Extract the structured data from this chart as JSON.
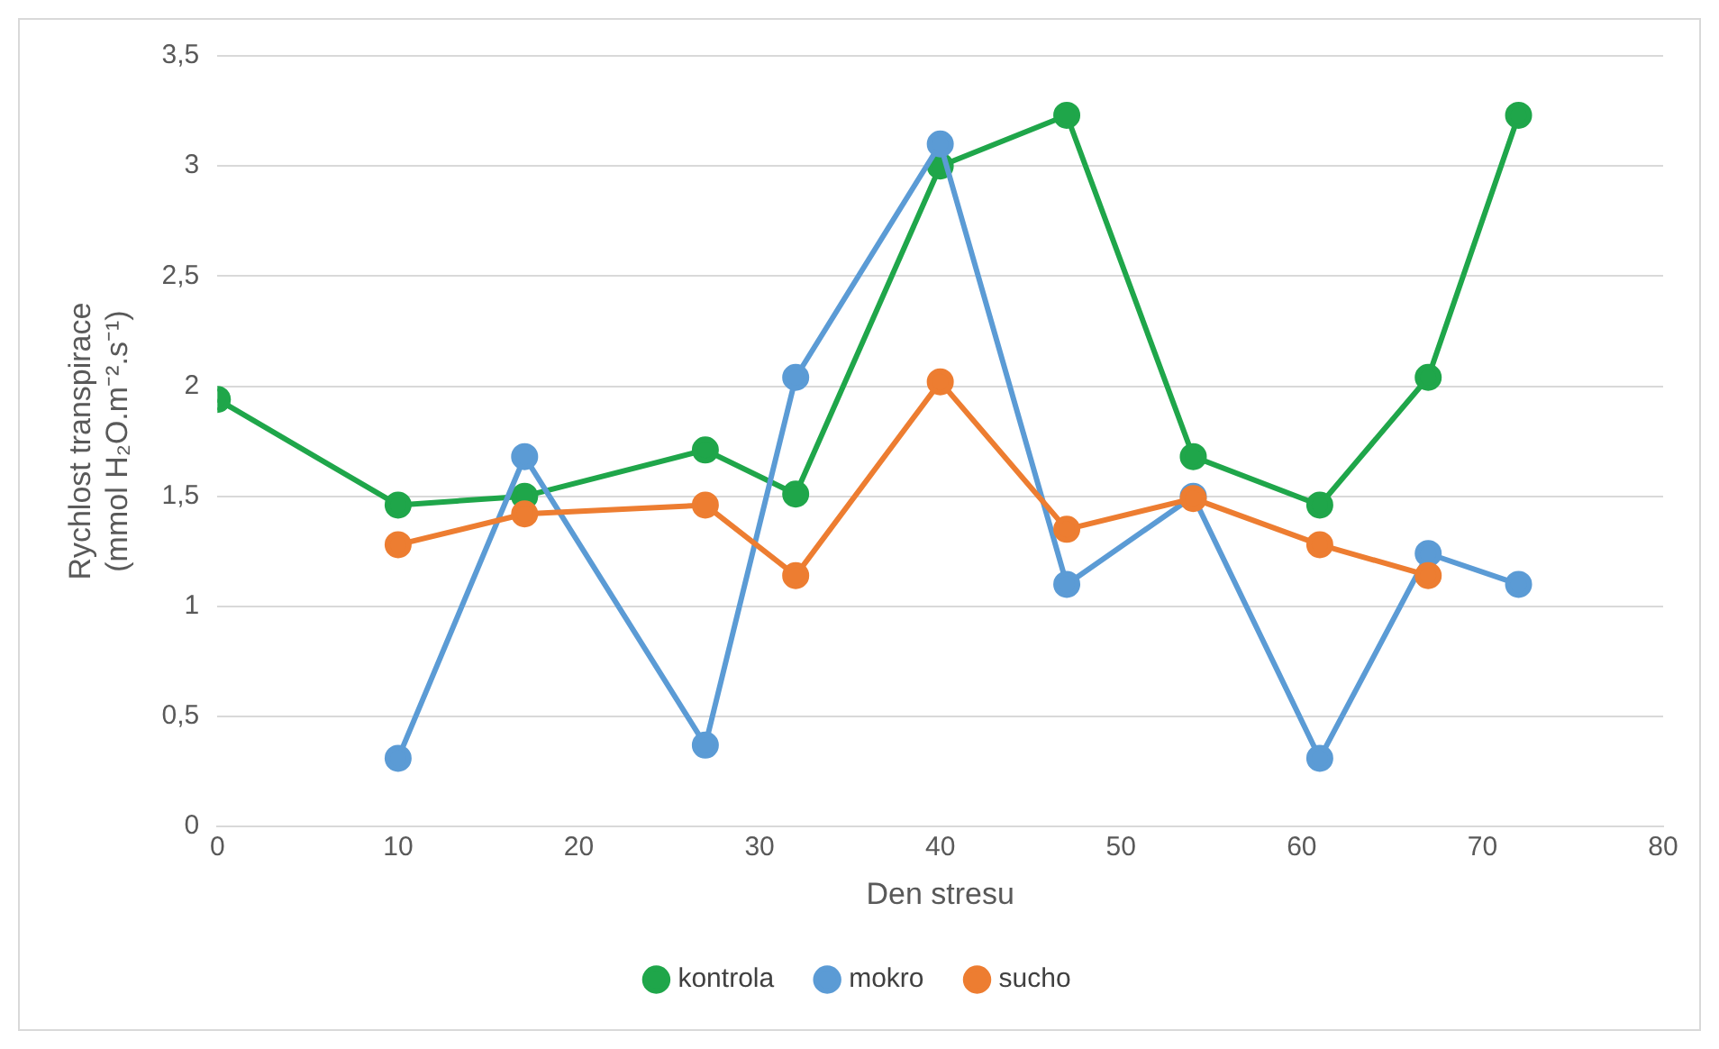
{
  "chart_data": {
    "type": "line",
    "xlabel": "Den stresu",
    "ylabel": "Rychlost transpirace\n(mmol H₂O.m⁻².s⁻¹)",
    "xlim": [
      0,
      80
    ],
    "xticks": [
      0,
      10,
      20,
      30,
      40,
      50,
      60,
      70,
      80
    ],
    "ylim": [
      0,
      3.5
    ],
    "yticks": [
      0,
      {
        "value": 0.5,
        "label": "0,5"
      },
      1,
      {
        "value": 1.5,
        "label": "1,5"
      },
      2,
      {
        "value": 2.5,
        "label": "2,5"
      },
      3,
      {
        "value": 3.5,
        "label": "3,5"
      }
    ],
    "grid": "y",
    "legend": "bottom",
    "marker": "circle",
    "line_style": "solid",
    "series": [
      {
        "name": "kontrola",
        "color": "#1fa64a",
        "x": [
          0,
          10,
          17,
          27,
          32,
          40,
          47,
          54,
          61,
          67,
          72
        ],
        "values": [
          1.94,
          1.46,
          1.5,
          1.71,
          1.51,
          3.0,
          3.23,
          1.68,
          1.46,
          2.04,
          3.23
        ]
      },
      {
        "name": "mokro",
        "color": "#5b9bd5",
        "x": [
          10,
          17,
          27,
          32,
          40,
          47,
          54,
          61,
          67,
          72
        ],
        "values": [
          0.31,
          1.68,
          0.37,
          2.04,
          3.1,
          1.1,
          1.5,
          0.31,
          1.24,
          1.1
        ]
      },
      {
        "name": "sucho",
        "color": "#ed7d31",
        "x": [
          10,
          17,
          27,
          32,
          40,
          47,
          54,
          61,
          67
        ],
        "values": [
          1.28,
          1.42,
          1.46,
          1.14,
          2.02,
          1.35,
          1.49,
          1.28,
          1.14
        ]
      }
    ]
  }
}
